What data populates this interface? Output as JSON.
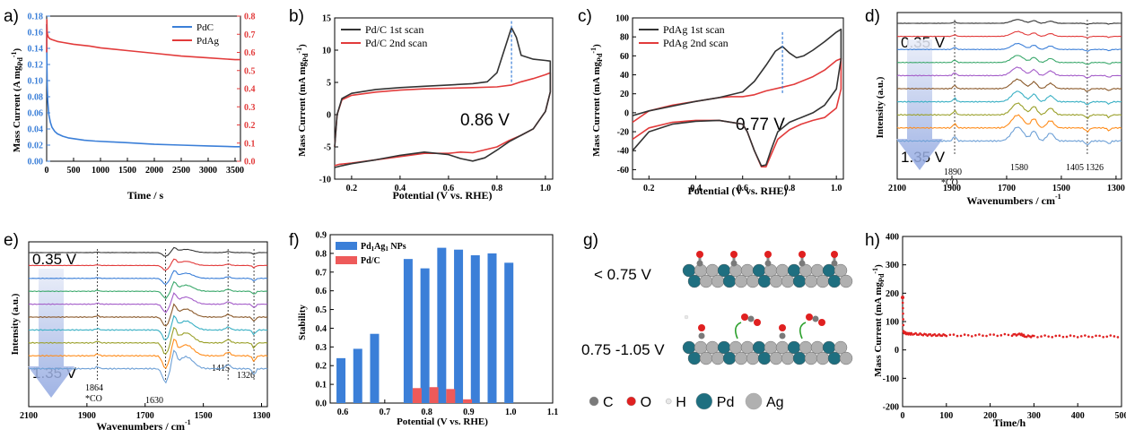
{
  "chart_data": [
    {
      "id": "a",
      "type": "line",
      "panel_label": "a)",
      "xlabel": "Time / s",
      "ylabel": "Mass Current (A mg",
      "ylabel_sub": "Pd",
      "ylabel_sup": "-1",
      "ylabel_end": ")",
      "xlim": [
        0,
        3600
      ],
      "ylim": [
        0,
        0.18
      ],
      "y2lim": [
        0,
        0.8
      ],
      "xticks": [
        "0",
        "500",
        "1000",
        "1500",
        "2000",
        "2500",
        "3000",
        "3500"
      ],
      "yticks": [
        "0.00",
        "0.02",
        "0.04",
        "0.06",
        "0.08",
        "0.10",
        "0.12",
        "0.14",
        "0.16",
        "0.18"
      ],
      "y2ticks": [
        "0.0",
        "0.1",
        "0.2",
        "0.3",
        "0.4",
        "0.5",
        "0.6",
        "0.7",
        "0.8"
      ],
      "legend": "top-right",
      "series": [
        {
          "name": "PdC",
          "color": "#3b7fd8",
          "axis": "left",
          "x": [
            0,
            5,
            10,
            20,
            40,
            70,
            100,
            150,
            200,
            300,
            400,
            500,
            700,
            900,
            1200,
            1500,
            2000,
            2500,
            3000,
            3500,
            3600
          ],
          "y": [
            0.17,
            0.12,
            0.095,
            0.075,
            0.058,
            0.048,
            0.042,
            0.037,
            0.034,
            0.031,
            0.029,
            0.028,
            0.026,
            0.025,
            0.024,
            0.023,
            0.021,
            0.02,
            0.019,
            0.018,
            0.018
          ]
        },
        {
          "name": "PdAg",
          "color": "#e23b3b",
          "axis": "right",
          "x": [
            0,
            3,
            8,
            15,
            30,
            60,
            100,
            200,
            300,
            500,
            800,
            1000,
            1500,
            2000,
            2500,
            3000,
            3500,
            3600
          ],
          "y": [
            0.6,
            0.78,
            0.72,
            0.7,
            0.685,
            0.675,
            0.67,
            0.66,
            0.655,
            0.645,
            0.635,
            0.625,
            0.61,
            0.595,
            0.58,
            0.57,
            0.56,
            0.56
          ]
        }
      ]
    },
    {
      "id": "b",
      "type": "line",
      "panel_label": "b)",
      "xlabel": "Potential (V vs. RHE)",
      "ylabel": "Mass Current (mA mg",
      "ylabel_sub": "Pd",
      "ylabel_sup": "-1",
      "ylabel_end": ")",
      "xlim": [
        0.13,
        1.03
      ],
      "ylim": [
        -10,
        15
      ],
      "xticks": [
        "0.2",
        "0.4",
        "0.6",
        "0.8",
        "1.0"
      ],
      "yticks": [
        "-10",
        "-5",
        "0",
        "5",
        "10",
        "15"
      ],
      "legend": "top-left",
      "annotation": "0.86 V",
      "peak_x": 0.86,
      "series": [
        {
          "name": "Pd/C 1st scan",
          "color": "#333333",
          "x": [
            0.13,
            0.14,
            0.16,
            0.2,
            0.3,
            0.4,
            0.5,
            0.6,
            0.7,
            0.76,
            0.8,
            0.83,
            0.86,
            0.88,
            0.9,
            0.95,
            1.0,
            1.02,
            1.02,
            1.0,
            0.95,
            0.9,
            0.85,
            0.8,
            0.75,
            0.7,
            0.65,
            0.6,
            0.5,
            0.4,
            0.3,
            0.2,
            0.15,
            0.13
          ],
          "y": [
            -5,
            0,
            2.5,
            3.3,
            3.9,
            4.2,
            4.4,
            4.6,
            4.8,
            5.1,
            6.5,
            10,
            13.5,
            12,
            9.2,
            8.6,
            8.4,
            8.3,
            3.5,
            0.5,
            -2.2,
            -3.2,
            -4.2,
            -5.5,
            -6.7,
            -7.2,
            -6.8,
            -6.2,
            -5.8,
            -6.3,
            -7.0,
            -7.6,
            -8.0,
            -8.2
          ]
        },
        {
          "name": "Pd/C 2nd scan",
          "color": "#e23b3b",
          "x": [
            0.13,
            0.14,
            0.16,
            0.2,
            0.3,
            0.4,
            0.5,
            0.6,
            0.7,
            0.8,
            0.86,
            0.9,
            0.95,
            1.0,
            1.02,
            1.02,
            1.0,
            0.95,
            0.9,
            0.85,
            0.8,
            0.7,
            0.65,
            0.6,
            0.5,
            0.4,
            0.3,
            0.2,
            0.15,
            0.13
          ],
          "y": [
            -5,
            0,
            2.3,
            3.0,
            3.5,
            3.8,
            4.0,
            4.1,
            4.2,
            4.3,
            4.6,
            5.1,
            5.6,
            6.2,
            6.5,
            3.5,
            0.5,
            -2.2,
            -3.2,
            -4.0,
            -5.0,
            -5.9,
            -5.8,
            -6.0,
            -6.0,
            -6.5,
            -7.0,
            -7.5,
            -7.7,
            -7.9
          ]
        }
      ]
    },
    {
      "id": "c",
      "type": "line",
      "panel_label": "c)",
      "xlabel": "Potential (V vs. RHE)",
      "ylabel": "Mass Current (mA mg",
      "ylabel_sub": "Pd",
      "ylabel_sup": "-1",
      "ylabel_end": ")",
      "xlim": [
        0.13,
        1.03
      ],
      "ylim": [
        -70,
        100
      ],
      "xticks": [
        "0.2",
        "0.4",
        "0.6",
        "0.8",
        "1.0"
      ],
      "yticks": [
        "-60",
        "-40",
        "-20",
        "0",
        "20",
        "40",
        "60",
        "80",
        "100"
      ],
      "legend": "top-left",
      "annotation": "0.77 V",
      "peak_x": 0.77,
      "series": [
        {
          "name": "PdAg 1st scan",
          "color": "#333333",
          "x": [
            0.13,
            0.2,
            0.3,
            0.4,
            0.5,
            0.6,
            0.65,
            0.7,
            0.74,
            0.77,
            0.8,
            0.83,
            0.86,
            0.9,
            0.95,
            1.0,
            1.02,
            1.02,
            1.0,
            0.95,
            0.9,
            0.85,
            0.8,
            0.75,
            0.72,
            0.7,
            0.68,
            0.65,
            0.62,
            0.6,
            0.5,
            0.4,
            0.3,
            0.2,
            0.13
          ],
          "y": [
            -3,
            2,
            7,
            12,
            16,
            22,
            33,
            50,
            65,
            70,
            63,
            58,
            60,
            66,
            75,
            85,
            88,
            57,
            25,
            8,
            0,
            -5,
            -10,
            -20,
            -40,
            -55,
            -56,
            -40,
            -20,
            -12,
            -8,
            -9,
            -12,
            -20,
            -40
          ]
        },
        {
          "name": "PdAg 2nd scan",
          "color": "#e23b3b",
          "x": [
            0.13,
            0.2,
            0.3,
            0.4,
            0.5,
            0.55,
            0.6,
            0.65,
            0.7,
            0.77,
            0.82,
            0.9,
            0.95,
            1.0,
            1.02,
            1.02,
            1.0,
            0.95,
            0.9,
            0.85,
            0.8,
            0.75,
            0.72,
            0.7,
            0.68,
            0.65,
            0.62,
            0.6,
            0.5,
            0.4,
            0.3,
            0.2,
            0.13
          ],
          "y": [
            -10,
            2,
            8,
            12,
            16,
            17,
            17,
            19,
            23,
            27,
            30,
            38,
            45,
            55,
            57,
            25,
            5,
            -5,
            -8,
            -12,
            -18,
            -28,
            -45,
            -57,
            -57,
            -40,
            -20,
            -12,
            -8,
            -8,
            -10,
            -16,
            -28
          ]
        }
      ]
    },
    {
      "id": "d",
      "type": "line",
      "panel_label": "d)",
      "xlabel": "Wavenumbers / cm",
      "xlabel_sup": "-1",
      "ylabel": "Intensity (a.u.)",
      "xlim": [
        2100,
        1280
      ],
      "xaxis_reversed": true,
      "xticks": [
        "2100",
        "1900",
        "1700",
        "1500",
        "1300"
      ],
      "top_potential": "0.35 V",
      "bottom_potential": "1.35 V",
      "peak_labels": [
        "1890",
        "*CO",
        "1580",
        "1405",
        "1326"
      ],
      "dashed_x": [
        1890,
        1405
      ],
      "colors": [
        "#333333",
        "#e23b3b",
        "#3b7fd8",
        "#3aa86b",
        "#a45dc9",
        "#8b5a2b",
        "#3ab0c4",
        "#9aa02a",
        "#ff8c1a",
        "#6ea0d6"
      ]
    },
    {
      "id": "e",
      "type": "line",
      "panel_label": "e)",
      "xlabel": "Wavenumbers / cm",
      "xlabel_sup": "-1",
      "ylabel": "Intensity (a.u.)",
      "xlim": [
        2100,
        1280
      ],
      "xaxis_reversed": true,
      "xticks": [
        "2100",
        "1900",
        "1700",
        "1500",
        "1300"
      ],
      "top_potential": "0.35 V",
      "bottom_potential": "1.35 V",
      "peak_labels": [
        "1864",
        "*CO",
        "1630",
        "1415",
        "1326"
      ],
      "dashed_x": [
        1864,
        1630,
        1415,
        1326
      ],
      "colors": [
        "#333333",
        "#e23b3b",
        "#3b7fd8",
        "#3aa86b",
        "#a45dc9",
        "#8b5a2b",
        "#3ab0c4",
        "#9aa02a",
        "#ff8c1a",
        "#6ea0d6"
      ]
    },
    {
      "id": "f",
      "type": "bar",
      "panel_label": "f)",
      "xlabel": "Potential (V vs. RHE)",
      "ylabel": "Stability",
      "xlim": [
        0.57,
        1.1
      ],
      "ylim": [
        0,
        0.9
      ],
      "xticks": [
        "0.6",
        "0.7",
        "0.8",
        "0.9",
        "1.0",
        "1.1"
      ],
      "yticks": [
        "0.0",
        "0.1",
        "0.2",
        "0.3",
        "0.4",
        "0.5",
        "0.6",
        "0.7",
        "0.8",
        "0.9"
      ],
      "legend": "top-left",
      "series": [
        {
          "name": "Pd",
          "name_sub1": "1",
          "name_mid": "Ag",
          "name_sub2": "1",
          "name_end": " NPs",
          "color": "#3b7fd8",
          "x": [
            0.6,
            0.64,
            0.68,
            0.76,
            0.8,
            0.84,
            0.88,
            0.92,
            0.96,
            1.0
          ],
          "values": [
            0.24,
            0.29,
            0.37,
            0.77,
            0.72,
            0.83,
            0.82,
            0.79,
            0.8,
            0.75
          ]
        },
        {
          "name": "Pd/C",
          "color": "#ee5a5a",
          "x": [
            0.76,
            0.8,
            0.84,
            0.88
          ],
          "values": [
            0.08,
            0.085,
            0.075,
            0.02
          ]
        }
      ]
    },
    {
      "id": "g",
      "type": "diagram",
      "panel_label": "g)",
      "label_top": "< 0.75 V",
      "label_bottom": "0.75 -1.05 V",
      "legend": [
        "C",
        "O",
        "H",
        "Pd",
        "Ag"
      ],
      "colors": {
        "C": "#7a7a7a",
        "O": "#e02020",
        "H": "#e8e8e8",
        "Pd": "#1f6f80",
        "Ag": "#b0b0b0"
      }
    },
    {
      "id": "h",
      "type": "scatter",
      "panel_label": "h)",
      "xlabel": "Time/h",
      "ylabel": "Mass Current (mA mg",
      "ylabel_sub": "Pd",
      "ylabel_sup": "-1",
      "ylabel_end": ")",
      "xlim": [
        0,
        500
      ],
      "ylim": [
        -200,
        400
      ],
      "xticks": [
        "0",
        "100",
        "200",
        "300",
        "400",
        "500"
      ],
      "yticks": [
        "-200",
        "-100",
        "0",
        "100",
        "200",
        "300",
        "400"
      ],
      "series": [
        {
          "name": "",
          "color": "#e02020",
          "x": [
            0,
            2,
            5,
            10,
            20,
            40,
            60,
            80,
            100,
            150,
            200,
            250,
            270,
            280,
            300,
            350,
            400,
            450,
            500
          ],
          "y": [
            185,
            65,
            60,
            58,
            57,
            55,
            53,
            52,
            52,
            51,
            52,
            53,
            55,
            48,
            48,
            48,
            48,
            48,
            48
          ]
        }
      ]
    }
  ]
}
